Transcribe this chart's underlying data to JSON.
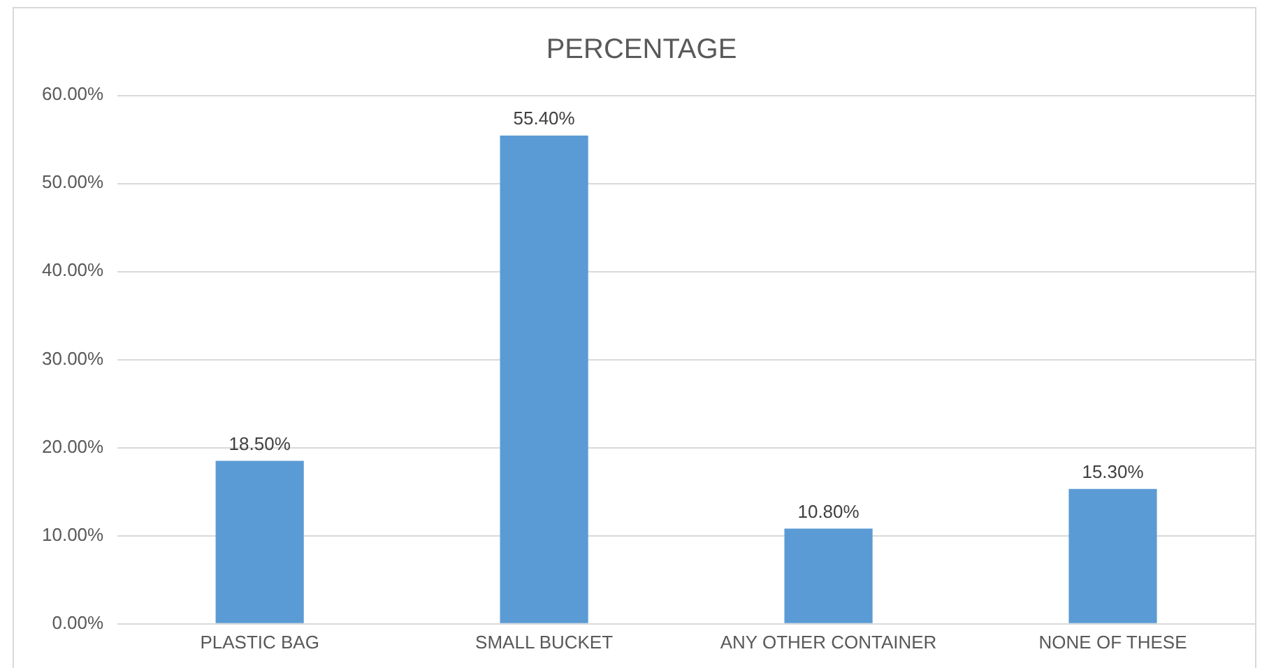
{
  "chart_data": {
    "type": "bar",
    "title": "PERCENTAGE",
    "categories": [
      "PLASTIC BAG",
      "SMALL BUCKET",
      "ANY OTHER CONTAINER",
      "NONE OF THESE"
    ],
    "values": [
      18.5,
      55.4,
      10.8,
      15.3
    ],
    "color": "#5b9bd5",
    "value_labels": [
      "18.50%",
      "55.40%",
      "10.80%",
      "15.30%"
    ],
    "ylim": [
      0,
      60
    ],
    "yticks": [
      {
        "value": 0,
        "label": "0.00%"
      },
      {
        "value": 10,
        "label": "10.00%"
      },
      {
        "value": 20,
        "label": "20.00%"
      },
      {
        "value": 30,
        "label": "30.00%"
      },
      {
        "value": 40,
        "label": "40.00%"
      },
      {
        "value": 50,
        "label": "50.00%"
      },
      {
        "value": 60,
        "label": "60.00%"
      }
    ],
    "grid": "y",
    "legend": false
  }
}
